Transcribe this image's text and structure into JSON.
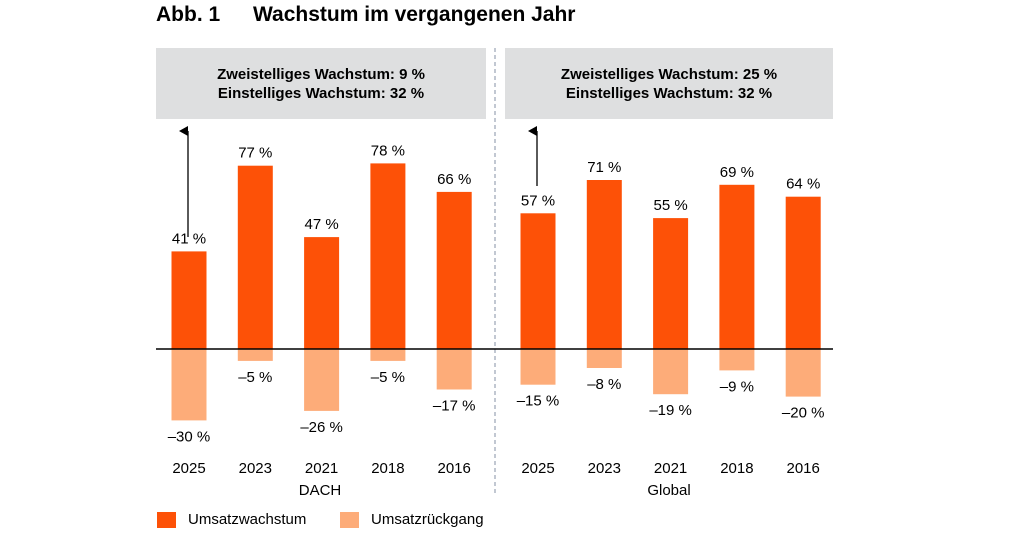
{
  "title": {
    "number": "Abb. 1",
    "text": "Wachstum im vergangenen Jahr"
  },
  "colors": {
    "growth": "#fd5107",
    "decline": "#fdac79",
    "box": "#dedfe0"
  },
  "chart_data": {
    "type": "bar",
    "title": "Wachstum im vergangenen Jahr",
    "ylim": [
      -30,
      78
    ],
    "legend": [
      {
        "name": "Umsatzwachstum",
        "color": "#fd5107"
      },
      {
        "name": "Umsatzrückgang",
        "color": "#fdac79"
      }
    ],
    "panels": [
      {
        "name": "DACH",
        "box_lines": [
          "Zweistelliges Wachstum: 9 %",
          "Einstelliges Wachstum: 32 %"
        ],
        "categories": [
          "2025",
          "2023",
          "2021",
          "2018",
          "2016"
        ],
        "series": [
          {
            "name": "Umsatzwachstum",
            "values": [
              41,
              77,
              47,
              78,
              66
            ],
            "labels": [
              "41 %",
              "77 %",
              "47 %",
              "78 %",
              "66 %"
            ]
          },
          {
            "name": "Umsatzrückgang",
            "values": [
              -30,
              -5,
              -26,
              -5,
              -17
            ],
            "labels": [
              "–30 %",
              "–5 %",
              "–26 %",
              "–5 %",
              "–17 %"
            ]
          }
        ]
      },
      {
        "name": "Global",
        "box_lines": [
          "Zweistelliges Wachstum: 25 %",
          "Einstelliges Wachstum: 32 %"
        ],
        "categories": [
          "2025",
          "2023",
          "2021",
          "2018",
          "2016"
        ],
        "series": [
          {
            "name": "Umsatzwachstum",
            "values": [
              57,
              71,
              55,
              69,
              64
            ],
            "labels": [
              "57 %",
              "71 %",
              "55 %",
              "69 %",
              "64 %"
            ]
          },
          {
            "name": "Umsatzrückgang",
            "values": [
              -15,
              -8,
              -19,
              -9,
              -20
            ],
            "labels": [
              "–15 %",
              "–8 %",
              "–19 %",
              "–9 %",
              "–20 %"
            ]
          }
        ]
      }
    ]
  }
}
